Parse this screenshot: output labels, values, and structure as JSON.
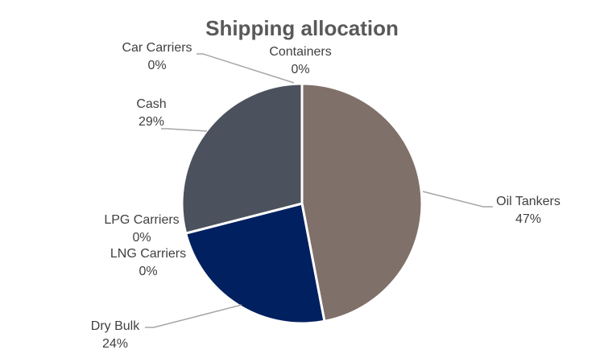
{
  "chart_data": {
    "type": "pie",
    "title": "Shipping allocation",
    "slices": [
      {
        "name": "Oil Tankers",
        "value": 47,
        "label": "47%",
        "color": "#7f7069"
      },
      {
        "name": "Dry Bulk",
        "value": 24,
        "label": "24%",
        "color": "#002060"
      },
      {
        "name": "LNG Carriers",
        "value": 0,
        "label": "0%",
        "color": "#7f7f7f"
      },
      {
        "name": "LPG Carriers",
        "value": 0,
        "label": "0%",
        "color": "#a5a5a5"
      },
      {
        "name": "Cash",
        "value": 29,
        "label": "29%",
        "color": "#4b515d"
      },
      {
        "name": "Car Carriers",
        "value": 0,
        "label": "0%",
        "color": "#c0b9b3"
      },
      {
        "name": "Containers",
        "value": 0,
        "label": "0%",
        "color": "#d9d9d9"
      }
    ],
    "legend": "none",
    "data_labels": "category name and percentage, outside end with leader lines"
  }
}
